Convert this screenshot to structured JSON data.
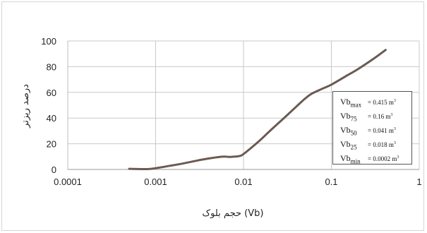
{
  "chart_data": {
    "type": "line",
    "title": "",
    "xlabel": "حجم بلوک (Vb)",
    "ylabel": "درصد ریزتر",
    "x_scale": "log",
    "xlim": [
      0.0001,
      1
    ],
    "ylim": [
      0,
      100
    ],
    "x_ticks": [
      "0.0001",
      "0.001",
      "0.01",
      "0.1",
      "1"
    ],
    "y_ticks": [
      "0",
      "20",
      "40",
      "60",
      "80",
      "100"
    ],
    "grid": true,
    "line_color": "#6b5a52",
    "series": [
      {
        "x": [
          0.0005,
          0.0008,
          0.001,
          0.0015,
          0.002,
          0.003,
          0.004,
          0.005,
          0.006,
          0.007,
          0.008,
          0.009,
          0.01,
          0.015,
          0.02,
          0.03,
          0.04,
          0.05,
          0.06,
          0.08,
          0.1,
          0.15,
          0.2,
          0.3,
          0.415
        ],
        "y": [
          0.5,
          0.3,
          1,
          3,
          4.5,
          7,
          8.5,
          9.5,
          10,
          9.7,
          10,
          10.5,
          12,
          22,
          30,
          41,
          49,
          55,
          59,
          63,
          66,
          73,
          78,
          86,
          93
        ]
      }
    ],
    "annotation_box": {
      "rows": [
        {
          "name": "Vb",
          "sub": "max",
          "value": "= 0.415 m",
          "unit_sup": "3"
        },
        {
          "name": "Vb",
          "sub": "75",
          "value": "= 0.16  m",
          "unit_sup": "3"
        },
        {
          "name": "Vb",
          "sub": "50",
          "value": "= 0.041 m",
          "unit_sup": "3"
        },
        {
          "name": "Vb",
          "sub": "25",
          "value": "= 0.018 m",
          "unit_sup": "3"
        },
        {
          "name": "Vb",
          "sub": "min",
          "value": "= 0.0002 m",
          "unit_sup": "3"
        }
      ]
    }
  }
}
